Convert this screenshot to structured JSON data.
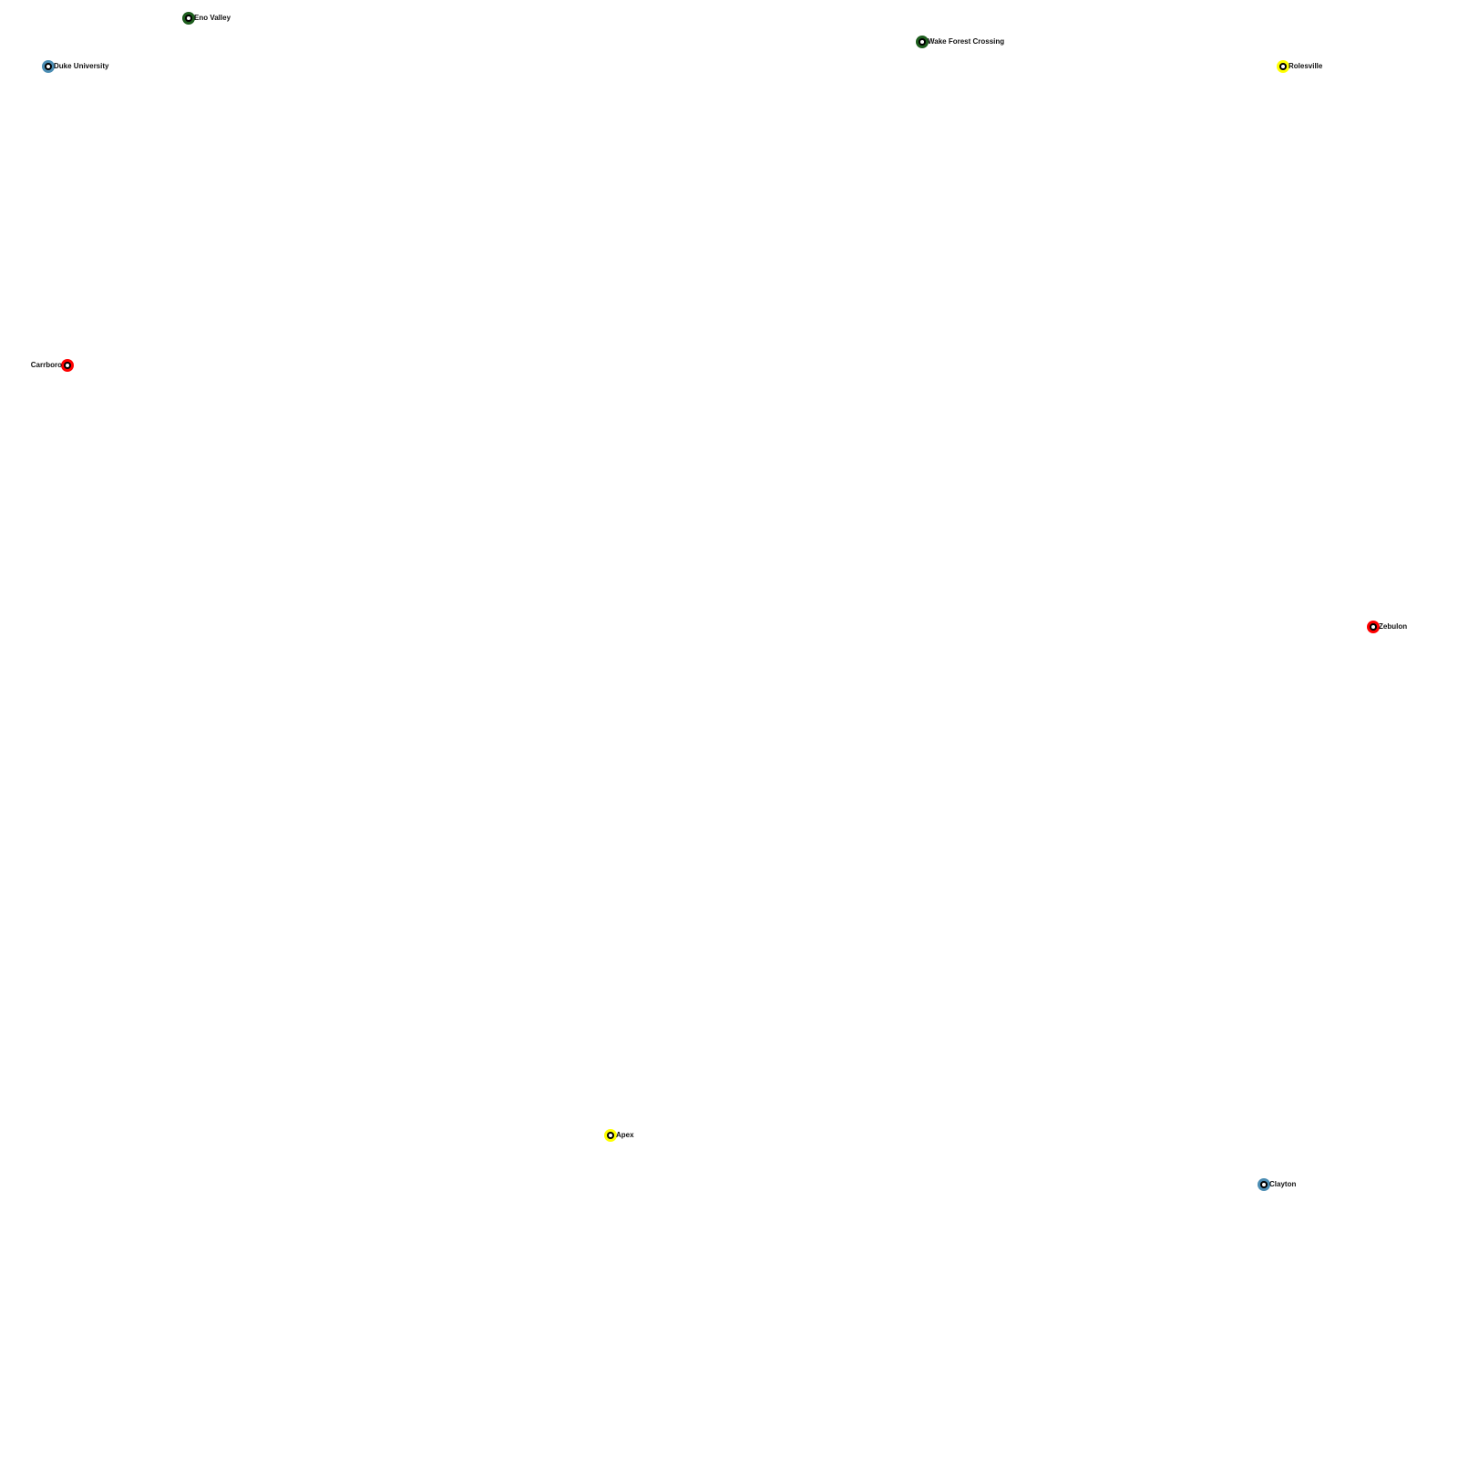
{
  "colors": {
    "green": "#1e5e1e",
    "blue": "#4b8db3",
    "red": "#ff0000",
    "yellow": "#ffff00"
  },
  "stations": [
    {
      "name": "Eno Valley",
      "color": "green"
    },
    {
      "name": "Wake Forest Crossing",
      "color": "green"
    },
    {
      "name": "Duke University",
      "color": "blue"
    },
    {
      "name": "Rolesville",
      "color": "yellow"
    },
    {
      "name": "Carrboro",
      "color": "red"
    },
    {
      "name": "Zebulon",
      "color": "red"
    },
    {
      "name": "Apex",
      "color": "yellow"
    },
    {
      "name": "Clayton",
      "color": "blue"
    }
  ]
}
